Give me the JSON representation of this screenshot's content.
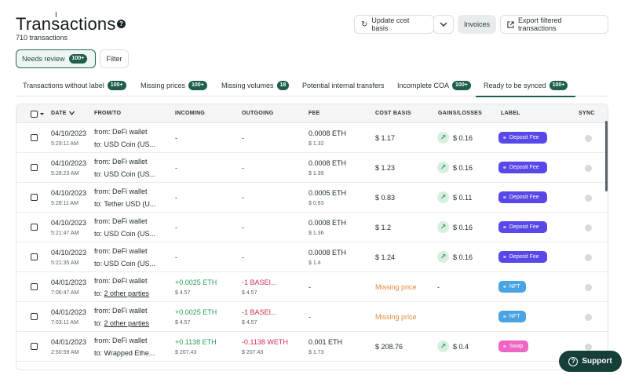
{
  "header": {
    "title": "Transactions",
    "count": "710 transactions",
    "help_icon": "question-circle-icon"
  },
  "toolbar": {
    "update_label": "Update cost basis",
    "invoices_label": "Invoices",
    "export_label": "Export filtered transactions"
  },
  "filters": {
    "needs_review_label": "Needs review",
    "needs_review_badge": "100+",
    "filter_label": "Filter"
  },
  "tabs": [
    {
      "label": "Transactions without label",
      "badge": "100+"
    },
    {
      "label": "Missing prices",
      "badge": "100+"
    },
    {
      "label": "Missing volumes",
      "badge": "18"
    },
    {
      "label": "Potential internal transfers",
      "badge": ""
    },
    {
      "label": "Incomplete COA",
      "badge": "100+"
    },
    {
      "label": "Ready to be synced",
      "badge": "100+"
    }
  ],
  "columns": {
    "date": "DATE",
    "from_to": "FROM/TO",
    "incoming": "INCOMING",
    "outgoing": "OUTGOING",
    "fee": "FEE",
    "cost_basis": "COST BASIS",
    "gains": "GAINS/LOSSES",
    "label": "LABEL",
    "sync": "SYNC"
  },
  "rows": [
    {
      "date": "04/10/2023",
      "time": "5:29:11 AM",
      "from": "from: DeFi wallet",
      "to": "to: USD Coin (US...",
      "to_link": false,
      "incoming": "-",
      "incoming_usd": "",
      "outgoing": "-",
      "outgoing_usd": "",
      "fee": "0.0008 ETH",
      "fee_usd": "$ 1.32",
      "cost_basis": "$ 1.17",
      "cost_missing": false,
      "gain": "$ 0.16",
      "label": "Deposit Fee",
      "label_kind": "deposit"
    },
    {
      "date": "04/10/2023",
      "time": "5:28:23 AM",
      "from": "from: DeFi wallet",
      "to": "to: USD Coin (US...",
      "to_link": false,
      "incoming": "-",
      "incoming_usd": "",
      "outgoing": "-",
      "outgoing_usd": "",
      "fee": "0.0008 ETH",
      "fee_usd": "$ 1.39",
      "cost_basis": "$ 1.23",
      "cost_missing": false,
      "gain": "$ 0.16",
      "label": "Deposit Fee",
      "label_kind": "deposit"
    },
    {
      "date": "04/10/2023",
      "time": "5:28:11 AM",
      "from": "from: DeFi wallet",
      "to": "to: Tether USD (U...",
      "to_link": false,
      "incoming": "-",
      "incoming_usd": "",
      "outgoing": "-",
      "outgoing_usd": "",
      "fee": "0.0005 ETH",
      "fee_usd": "$ 0.93",
      "cost_basis": "$ 0.83",
      "cost_missing": false,
      "gain": "$ 0.11",
      "label": "Deposit Fee",
      "label_kind": "deposit"
    },
    {
      "date": "04/10/2023",
      "time": "5:21:47 AM",
      "from": "from: DeFi wallet",
      "to": "to: USD Coin (US...",
      "to_link": false,
      "incoming": "-",
      "incoming_usd": "",
      "outgoing": "-",
      "outgoing_usd": "",
      "fee": "0.0008 ETH",
      "fee_usd": "$ 1.36",
      "cost_basis": "$ 1.2",
      "cost_missing": false,
      "gain": "$ 0.16",
      "label": "Deposit Fee",
      "label_kind": "deposit"
    },
    {
      "date": "04/10/2023",
      "time": "5:21:35 AM",
      "from": "from: DeFi wallet",
      "to": "to: USD Coin (US...",
      "to_link": false,
      "incoming": "-",
      "incoming_usd": "",
      "outgoing": "-",
      "outgoing_usd": "",
      "fee": "0.0008 ETH",
      "fee_usd": "$ 1.4",
      "cost_basis": "$ 1.24",
      "cost_missing": false,
      "gain": "$ 0.16",
      "label": "Deposit Fee",
      "label_kind": "deposit"
    },
    {
      "date": "04/01/2023",
      "time": "7:06:47 AM",
      "from": "from: DeFi wallet",
      "to": "2 other parties",
      "to_link": true,
      "incoming": "+0.0025 ETH",
      "incoming_usd": "$ 4.57",
      "outgoing": "-1 BASEI...",
      "outgoing_usd": "$ 4.57",
      "fee": "-",
      "fee_usd": "",
      "cost_basis": "Missing price",
      "cost_missing": true,
      "gain": "-",
      "label": "NFT",
      "label_kind": "nft"
    },
    {
      "date": "04/01/2023",
      "time": "7:03:11 AM",
      "from": "from: DeFi wallet",
      "to": "2 other parties",
      "to_link": true,
      "incoming": "+0.0025 ETH",
      "incoming_usd": "$ 4.57",
      "outgoing": "-1 BASEI...",
      "outgoing_usd": "$ 4.57",
      "fee": "-",
      "fee_usd": "",
      "cost_basis": "Missing price",
      "cost_missing": true,
      "gain": "",
      "label": "NFT",
      "label_kind": "nft"
    },
    {
      "date": "04/01/2023",
      "time": "2:50:59 AM",
      "from": "from: DeFi wallet",
      "to": "to: Wrapped Ethe...",
      "to_link": false,
      "incoming": "+0.1138 ETH",
      "incoming_usd": "$ 207.43",
      "outgoing": "-0.1138 WETH",
      "outgoing_usd": "$ 207.43",
      "fee": "0.001 ETH",
      "fee_usd": "$ 1.73",
      "cost_basis": "$ 208.76",
      "cost_missing": false,
      "gain": "$ 0.4",
      "label": "Swap",
      "label_kind": "swap"
    }
  ],
  "support": {
    "label": "Support"
  }
}
